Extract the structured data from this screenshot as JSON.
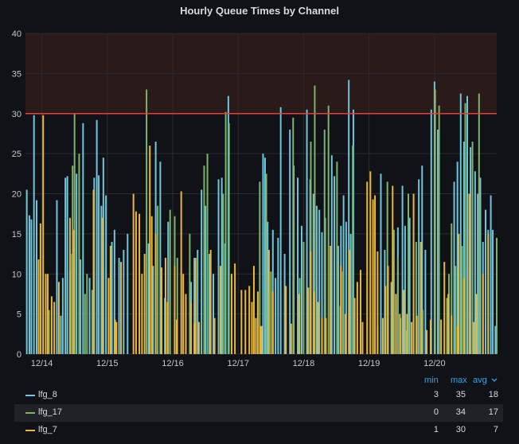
{
  "panel": {
    "title": "Hourly Queue Times by Channel"
  },
  "colors": {
    "background": "#111217",
    "grid": "#2a2b30",
    "threshold_line": "#e0413a",
    "threshold_fill": "#2a1a1a",
    "axis_text": "#c7c7c7",
    "legend_header": "#33a2e5"
  },
  "legend": {
    "headers": {
      "min": "min",
      "max": "max",
      "avg": "avg",
      "sort_icon": "chevron-down-icon"
    },
    "rows": [
      {
        "name": "lfg_8",
        "color": "#6ec6d8",
        "min": "3",
        "max": "35",
        "avg": "18"
      },
      {
        "name": "lfg_17",
        "color": "#7eb26d",
        "min": "0",
        "max": "34",
        "avg": "17"
      },
      {
        "name": "lfg_7",
        "color": "#eab839",
        "min": "1",
        "max": "30",
        "avg": "7"
      }
    ]
  },
  "chart_data": {
    "type": "bar",
    "title": "Hourly Queue Times by Channel",
    "xlabel": "",
    "ylabel": "",
    "ylim": [
      0,
      40
    ],
    "yticks": [
      0,
      5,
      10,
      15,
      20,
      25,
      30,
      35,
      40
    ],
    "xticks": [
      "12/14",
      "12/15",
      "12/16",
      "12/17",
      "12/18",
      "12/19",
      "12/20"
    ],
    "xrange_days": [
      13.75,
      20.95
    ],
    "threshold": 30,
    "grid": true,
    "legend_position": "bottom",
    "series": [
      {
        "name": "lfg_8",
        "color": "#6ec6d8",
        "x": [
          13.77,
          13.81,
          13.84,
          13.88,
          13.92,
          14.23,
          14.29,
          14.32,
          14.36,
          14.39,
          14.43,
          14.46,
          14.53,
          14.59,
          14.63,
          14.73,
          14.8,
          14.84,
          14.87,
          14.91,
          14.94,
          14.98,
          15.07,
          15.11,
          15.18,
          15.25,
          15.31,
          15.63,
          15.7,
          15.74,
          15.81,
          15.88,
          15.93,
          16.28,
          16.33,
          16.38,
          16.44,
          16.5,
          16.56,
          16.62,
          16.7,
          16.75,
          16.8,
          16.85,
          17.38,
          17.41,
          17.45,
          17.53,
          17.57,
          17.61,
          17.65,
          17.71,
          17.79,
          17.85,
          17.91,
          17.97,
          18.05,
          18.1,
          18.15,
          18.2,
          18.24,
          18.28,
          18.33,
          18.43,
          18.47,
          18.53,
          18.57,
          18.61,
          18.65,
          18.69,
          18.72,
          18.76,
          19.18,
          19.24,
          19.34,
          19.44,
          19.51,
          19.55,
          19.62,
          19.76,
          19.81,
          19.86,
          19.95,
          20.0,
          20.05,
          20.3,
          20.35,
          20.4,
          20.45,
          20.5,
          20.55,
          20.62,
          20.66,
          20.7,
          20.74,
          20.78,
          20.82,
          20.86,
          20.89,
          20.93
        ],
        "values": [
          20.5,
          17.3,
          16.8,
          29.8,
          19.2,
          19.2,
          4.8,
          9.5,
          22,
          22.2,
          10.5,
          12.5,
          22.5,
          11.8,
          28.8,
          9.5,
          22,
          29.2,
          22.3,
          18.5,
          24.5,
          19.8,
          14,
          15.5,
          12,
          13,
          15,
          13.8,
          11,
          26.5,
          24,
          7,
          16.5,
          9,
          12,
          13,
          20.5,
          18.5,
          12.5,
          10,
          21.8,
          22,
          13.8,
          32.2,
          25,
          24.5,
          16.5,
          15.5,
          9.5,
          14.5,
          30.8,
          12.5,
          28,
          23.5,
          22,
          16,
          30.5,
          21.8,
          20,
          18.5,
          18,
          15.2,
          17,
          24.8,
          22.2,
          13.5,
          16,
          19.8,
          16.5,
          34.2,
          15,
          30.5,
          22.5,
          13,
          9,
          15.8,
          21,
          16,
          17,
          21.8,
          23.5,
          13,
          30.5,
          34,
          28,
          21.5,
          24,
          32.5,
          26.5,
          32.2,
          25.8,
          22.8,
          20,
          22,
          14,
          18,
          15.5,
          19.8,
          15.5,
          3.5
        ]
      },
      {
        "name": "lfg_17",
        "color": "#7eb26d",
        "x": [
          14.11,
          14.47,
          14.5,
          14.57,
          14.66,
          14.69,
          14.77,
          15.6,
          15.77,
          15.96,
          16.03,
          16.07,
          16.26,
          16.48,
          16.53,
          16.77,
          16.81,
          16.86,
          17.33,
          17.43,
          17.5,
          17.84,
          17.94,
          18.0,
          18.11,
          18.17,
          18.32,
          18.38,
          18.51,
          18.56,
          18.6,
          18.75,
          19.13,
          19.28,
          19.38,
          19.44,
          19.48,
          19.57,
          19.6,
          19.68,
          19.72,
          19.82,
          20.01,
          20.07,
          20.19,
          20.22,
          20.26,
          20.32,
          20.42,
          20.47,
          20.58,
          20.68,
          20.95
        ],
        "values": [
          5.5,
          23.5,
          30,
          25,
          7.5,
          10,
          8,
          33,
          18.5,
          18,
          17.2,
          12,
          15,
          23.5,
          25,
          20,
          30.2,
          28.8,
          21.5,
          22.5,
          10.3,
          29.5,
          9.5,
          14,
          26.5,
          33.5,
          28,
          31,
          24,
          6,
          10.3,
          26,
          3.5,
          21.5,
          15.5,
          12,
          4.5,
          3,
          20,
          4.5,
          14,
          5.5,
          33,
          31,
          7,
          10,
          16.3,
          11,
          13.5,
          31.3,
          26.5,
          32.5,
          14.5
        ]
      },
      {
        "name": "lfg_7",
        "color": "#eab839",
        "x": [
          13.95,
          13.98,
          14.02,
          14.06,
          14.09,
          14.15,
          14.19,
          14.26,
          14.43,
          14.49,
          14.79,
          14.93,
          15.02,
          15.05,
          15.12,
          15.14,
          15.21,
          15.4,
          15.44,
          15.49,
          15.53,
          15.57,
          15.65,
          15.68,
          15.74,
          15.83,
          15.89,
          15.92,
          16.03,
          16.06,
          16.13,
          16.16,
          16.2,
          16.28,
          16.33,
          16.35,
          16.4,
          16.58,
          16.64,
          16.73,
          16.9,
          16.95,
          17.05,
          17.11,
          17.17,
          17.21,
          17.24,
          17.27,
          17.3,
          17.34,
          17.36,
          17.47,
          17.53,
          17.73,
          17.81,
          17.93,
          18.07,
          18.11,
          18.16,
          18.22,
          18.28,
          18.34,
          18.41,
          18.57,
          18.64,
          18.7,
          18.78,
          18.82,
          18.87,
          18.9,
          18.97,
          19.02,
          19.06,
          19.09,
          19.13,
          19.21,
          19.25,
          19.29,
          19.36,
          19.41,
          19.47,
          19.53,
          19.58,
          19.65,
          19.68,
          19.73,
          19.79,
          19.88,
          19.94,
          20.1,
          20.15,
          20.21,
          20.26,
          20.35,
          20.37,
          20.45,
          20.53,
          20.6,
          20.64,
          20.74,
          20.82
        ],
        "values": [
          11.8,
          16.3,
          29.8,
          10,
          10,
          7.2,
          6.5,
          9,
          17,
          15.5,
          20.5,
          17,
          9.5,
          13.5,
          4.3,
          4,
          11.5,
          20,
          17.8,
          17.5,
          10,
          12.5,
          26,
          17.2,
          15,
          10.8,
          12,
          6.5,
          11,
          4.3,
          20.3,
          10,
          7.5,
          6.5,
          3.8,
          12,
          4,
          13,
          4.5,
          11,
          10,
          11.3,
          8,
          8,
          8.5,
          6.5,
          11,
          4.5,
          7.8,
          3.5,
          3.5,
          13,
          7.8,
          8.5,
          3.8,
          7.5,
          8.3,
          12.8,
          7.8,
          6.5,
          4.5,
          4.5,
          13.5,
          11,
          5,
          13,
          7,
          9,
          10.5,
          4,
          21.5,
          22.8,
          19.3,
          19.8,
          12.8,
          4.5,
          8.5,
          11,
          21,
          7.5,
          5,
          8,
          5,
          4,
          20,
          4.8,
          14,
          3,
          4.3,
          4.3,
          11.5,
          7.5,
          4.8,
          3.5,
          15,
          9.5,
          20,
          4,
          7.5,
          10,
          15
        ]
      }
    ]
  }
}
